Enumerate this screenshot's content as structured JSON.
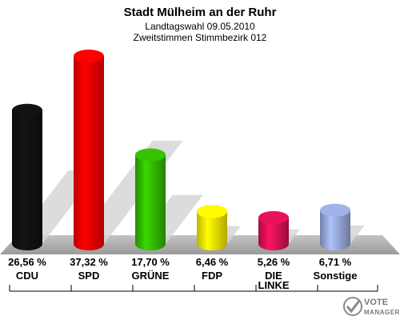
{
  "chart_data": {
    "type": "bar",
    "title": "Stadt Mülheim an der Ruhr",
    "subtitle": "Landtagswahl 09.05.2010",
    "subtitle2": "Zweitstimmen Stimmbezirk 012",
    "categories": [
      "CDU",
      "SPD",
      "GRÜNE",
      "FDP",
      "DIE LINKE",
      "Sonstige"
    ],
    "values": [
      26.56,
      37.32,
      17.7,
      6.46,
      5.26,
      6.71
    ],
    "labels": [
      "26,56 %",
      "37,32 %",
      "17,70 %",
      "6,46 %",
      "5,26 %",
      "6,71 %"
    ],
    "colors": [
      "#111111",
      "#ff0000",
      "#33bb00",
      "#ffee00",
      "#dd1155",
      "#99aadd"
    ],
    "ylim": [
      0,
      37.32
    ]
  },
  "logo": {
    "line1": "VOTE",
    "line2": "MANAGER"
  }
}
